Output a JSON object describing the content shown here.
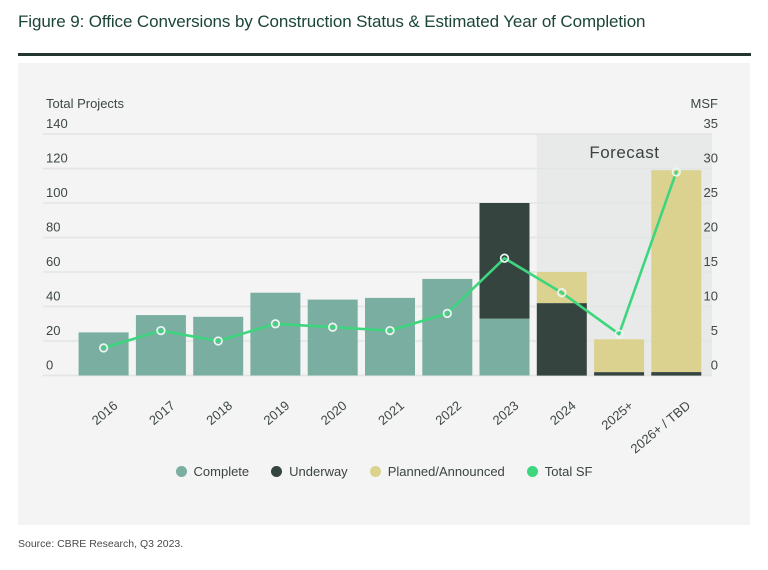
{
  "figure": {
    "source": "Source: CBRE Research, Q3 2023."
  },
  "chart_data": {
    "type": "bar",
    "subtype": "stacked-bar-with-line-combo",
    "title": "Figure 9: Office Conversions by Construction Status & Estimated Year of Completion",
    "categories": [
      "2016",
      "2017",
      "2018",
      "2019",
      "2020",
      "2021",
      "2022",
      "2023",
      "2024",
      "2025+",
      "2026+ / TBD"
    ],
    "series": [
      {
        "name": "Complete",
        "type": "bar",
        "axis": "left",
        "color": "#79AEA0",
        "values": [
          25,
          35,
          34,
          48,
          44,
          45,
          56,
          33,
          0,
          0,
          0
        ]
      },
      {
        "name": "Underway",
        "type": "bar",
        "axis": "left",
        "color": "#364440",
        "values": [
          0,
          0,
          0,
          0,
          0,
          0,
          0,
          67,
          42,
          2,
          2
        ]
      },
      {
        "name": "Planned/Announced",
        "type": "bar",
        "axis": "left",
        "color": "#DCD290",
        "values": [
          0,
          0,
          0,
          0,
          0,
          0,
          0,
          0,
          18,
          19,
          117
        ]
      },
      {
        "name": "Total SF",
        "type": "line",
        "axis": "right",
        "color": "#3DD67E",
        "values": [
          4,
          6.5,
          5,
          7.5,
          7,
          6.5,
          9,
          17,
          12,
          6,
          29.5
        ]
      }
    ],
    "stacked": true,
    "grid": true,
    "left_axis": {
      "label": "Total Projects",
      "min": 0,
      "max": 140,
      "tick_step": 20,
      "ticks": [
        0,
        20,
        40,
        60,
        80,
        100,
        120,
        140
      ]
    },
    "right_axis": {
      "label": "MSF",
      "min": 0,
      "max": 35,
      "tick_step": 5,
      "ticks": [
        0,
        5,
        10,
        15,
        20,
        25,
        30,
        35
      ]
    },
    "forecast_band": {
      "label": "Forecast",
      "categories": [
        "2024",
        "2025+",
        "2026+ / TBD"
      ],
      "fill": "#E8EAE9"
    },
    "legend": {
      "position": "bottom",
      "items": [
        "Complete",
        "Underway",
        "Planned/Announced",
        "Total SF"
      ]
    },
    "colors": {
      "gridline": "#E2E5E4",
      "panel_background": "#F3F4F3",
      "axis_text": "#3E4745",
      "title_text": "#1B4536",
      "marker_ring": "#E9F8EF"
    }
  }
}
